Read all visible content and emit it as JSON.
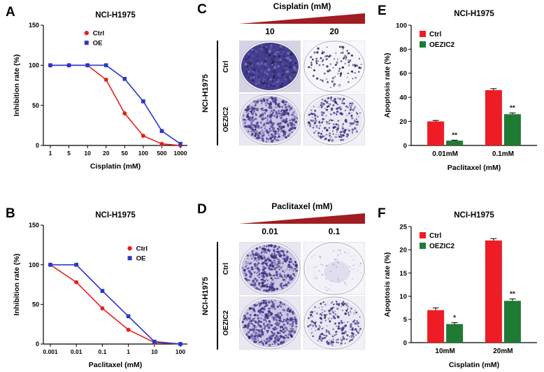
{
  "figure": {
    "panel_labels": {
      "A": "A",
      "B": "B",
      "C": "C",
      "D": "D",
      "E": "E",
      "F": "F"
    }
  },
  "chart_data": [
    {
      "id": "A",
      "type": "line",
      "title": "NCI-H1975",
      "xlabel": "Cisplatin (mM)",
      "ylabel": "Inhibition rate (%)",
      "x_ticks": [
        "1",
        "5",
        "10",
        "20",
        "50",
        "100",
        "500",
        "1000"
      ],
      "y_ticks": [
        0,
        50,
        100,
        150
      ],
      "ylim": [
        0,
        150
      ],
      "grid": false,
      "legend": {
        "x": 0.3,
        "y": 0.03
      },
      "series": [
        {
          "name": "Ctrl",
          "color": "#e8211d",
          "marker": "circle",
          "values": [
            100,
            100,
            100,
            82,
            40,
            12,
            2,
            0
          ]
        },
        {
          "name": "OE",
          "color": "#2a35c9",
          "marker": "square",
          "values": [
            100,
            100,
            100,
            100,
            83,
            55,
            18,
            2
          ]
        }
      ]
    },
    {
      "id": "B",
      "type": "line",
      "title": "NCI-H1975",
      "xlabel": "Paclitaxel (mM)",
      "ylabel": "Inhibition rate (%)",
      "x_ticks": [
        "0.001",
        "0.01",
        "0.1",
        "1",
        "10",
        "100"
      ],
      "y_ticks": [
        0,
        50,
        100,
        150
      ],
      "ylim": [
        0,
        150
      ],
      "grid": false,
      "legend": {
        "x": 0.6,
        "y": 0.16
      },
      "series": [
        {
          "name": "Ctrl",
          "color": "#e8211d",
          "marker": "circle",
          "values": [
            100,
            78,
            45,
            18,
            2,
            0
          ]
        },
        {
          "name": "OE",
          "color": "#2a35c9",
          "marker": "square",
          "values": [
            100,
            100,
            67,
            35,
            3,
            0
          ]
        }
      ]
    },
    {
      "id": "E",
      "type": "bar",
      "title": "NCI-H1975",
      "xlabel": "Paclitaxel (mM)",
      "ylabel": "Apoptosis rate (%)",
      "categories": [
        "0.01mM",
        "0.1mM"
      ],
      "y_ticks": [
        0,
        20,
        40,
        60,
        80,
        100
      ],
      "ylim": [
        0,
        100
      ],
      "grid": false,
      "legend_position": "top-left",
      "series": [
        {
          "name": "Ctrl",
          "color": "#ee1c25",
          "values": [
            20,
            46
          ],
          "errors": [
            0.8,
            1.2
          ]
        },
        {
          "name": "OEZIC2",
          "color": "#1f7a33",
          "values": [
            4,
            26
          ],
          "errors": [
            0.4,
            1.0
          ]
        }
      ],
      "significance": [
        {
          "category": 0,
          "series": 1,
          "label": "**"
        },
        {
          "category": 1,
          "series": 1,
          "label": "**"
        }
      ]
    },
    {
      "id": "F",
      "type": "bar",
      "title": "NCI-H1975",
      "xlabel": "Cisplatin (mM)",
      "ylabel": "Apoptosis rate (%)",
      "categories": [
        "10mM",
        "20mM"
      ],
      "y_ticks": [
        0,
        5,
        10,
        15,
        20,
        25
      ],
      "ylim": [
        0,
        25
      ],
      "grid": false,
      "legend_position": "top-left",
      "series": [
        {
          "name": "Ctrl",
          "color": "#ee1c25",
          "values": [
            7,
            22
          ],
          "errors": [
            0.5,
            0.4
          ]
        },
        {
          "name": "OEZIC2",
          "color": "#1f7a33",
          "values": [
            4,
            9
          ],
          "errors": [
            0.3,
            0.4
          ]
        }
      ],
      "significance": [
        {
          "category": 0,
          "series": 1,
          "label": "*"
        },
        {
          "category": 1,
          "series": 1,
          "label": "**"
        }
      ]
    }
  ],
  "colony_assays": [
    {
      "id": "C",
      "drug_label": "Cisplatin (mM)",
      "doses": [
        "10",
        "20"
      ],
      "cell_line": "NCI-H1975",
      "triangle_color": "#a01d22",
      "rows": [
        {
          "name": "Ctrl",
          "wells": [
            {
              "density": "solid"
            },
            {
              "density": "sparse"
            }
          ]
        },
        {
          "name": "OEZIC2",
          "wells": [
            {
              "density": "dense"
            },
            {
              "density": "medium"
            }
          ]
        }
      ]
    },
    {
      "id": "D",
      "drug_label": "Paclitaxel (mM)",
      "doses": [
        "0.01",
        "0.1"
      ],
      "cell_line": "NCI-H1975",
      "triangle_color": "#a01d22",
      "rows": [
        {
          "name": "Ctrl",
          "wells": [
            {
              "density": "dense"
            },
            {
              "density": "faint"
            }
          ]
        },
        {
          "name": "OEZIC2",
          "wells": [
            {
              "density": "dense"
            },
            {
              "density": "medium"
            }
          ]
        }
      ]
    }
  ]
}
